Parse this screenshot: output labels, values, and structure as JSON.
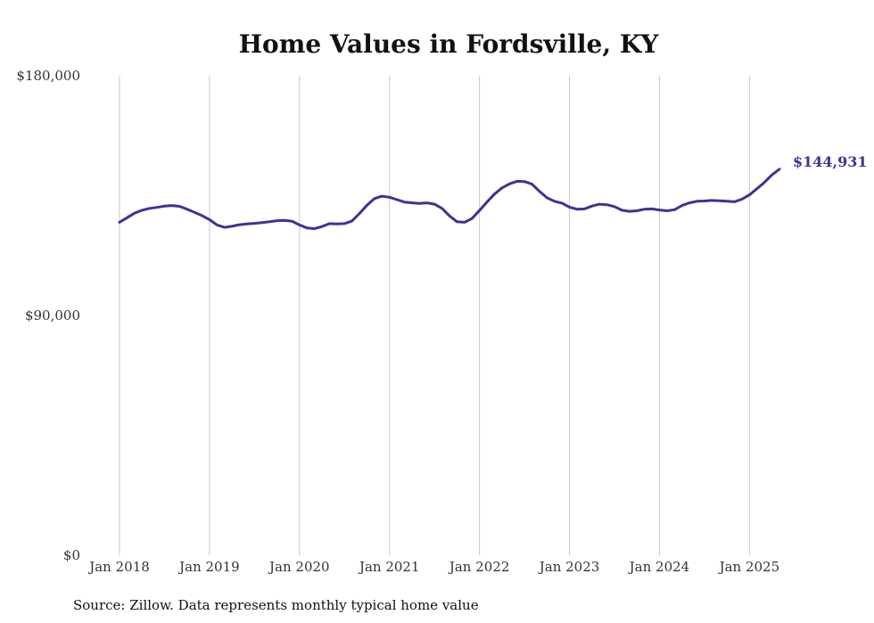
{
  "chart_data": {
    "type": "line",
    "title": "Home Values in Fordsville, KY",
    "xlabel": "",
    "ylabel": "",
    "ylim": [
      0,
      180000
    ],
    "y_ticks": [
      0,
      90000,
      180000
    ],
    "y_tick_labels": [
      "$0",
      "$90,000",
      "$180,000"
    ],
    "x_tick_labels": [
      "Jan 2018",
      "Jan 2019",
      "Jan 2020",
      "Jan 2021",
      "Jan 2022",
      "Jan 2023",
      "Jan 2024",
      "Jan 2025"
    ],
    "x_tick_dates": [
      "2018-01",
      "2019-01",
      "2020-01",
      "2021-01",
      "2022-01",
      "2023-01",
      "2024-01",
      "2025-01"
    ],
    "xlim": [
      "2018-01",
      "2025-05"
    ],
    "grid": "vertical",
    "end_label": "$144,931",
    "line_color": "#3b3496",
    "x": [
      "2018-01",
      "2018-02",
      "2018-03",
      "2018-04",
      "2018-05",
      "2018-06",
      "2018-07",
      "2018-08",
      "2018-09",
      "2018-10",
      "2018-11",
      "2018-12",
      "2019-01",
      "2019-02",
      "2019-03",
      "2019-04",
      "2019-05",
      "2019-06",
      "2019-07",
      "2019-08",
      "2019-09",
      "2019-10",
      "2019-11",
      "2019-12",
      "2020-01",
      "2020-02",
      "2020-03",
      "2020-04",
      "2020-05",
      "2020-06",
      "2020-07",
      "2020-08",
      "2020-09",
      "2020-10",
      "2020-11",
      "2020-12",
      "2021-01",
      "2021-02",
      "2021-03",
      "2021-04",
      "2021-05",
      "2021-06",
      "2021-07",
      "2021-08",
      "2021-09",
      "2021-10",
      "2021-11",
      "2021-12",
      "2022-01",
      "2022-02",
      "2022-03",
      "2022-04",
      "2022-05",
      "2022-06",
      "2022-07",
      "2022-08",
      "2022-09",
      "2022-10",
      "2022-11",
      "2022-12",
      "2023-01",
      "2023-02",
      "2023-03",
      "2023-04",
      "2023-05",
      "2023-06",
      "2023-07",
      "2023-08",
      "2023-09",
      "2023-10",
      "2023-11",
      "2023-12",
      "2024-01",
      "2024-02",
      "2024-03",
      "2024-04",
      "2024-05",
      "2024-06",
      "2024-07",
      "2024-08",
      "2024-09",
      "2024-10",
      "2024-11",
      "2024-12",
      "2025-01",
      "2025-02",
      "2025-03",
      "2025-04",
      "2025-05"
    ],
    "values": [
      125000,
      126700,
      128400,
      129500,
      130200,
      130600,
      131100,
      131300,
      131000,
      129900,
      128700,
      127500,
      126000,
      124000,
      123100,
      123500,
      124100,
      124400,
      124600,
      124900,
      125200,
      125600,
      125700,
      125400,
      124000,
      122900,
      122600,
      123400,
      124500,
      124400,
      124500,
      125500,
      128300,
      131400,
      133900,
      134800,
      134400,
      133500,
      132600,
      132300,
      132100,
      132300,
      131800,
      130200,
      127400,
      125200,
      125000,
      126400,
      129400,
      132600,
      135600,
      137900,
      139400,
      140400,
      140300,
      139300,
      136600,
      134200,
      132900,
      132200,
      130700,
      129900,
      130000,
      131100,
      131800,
      131600,
      130900,
      129500,
      129100,
      129300,
      129900,
      130000,
      129600,
      129300,
      129700,
      131300,
      132300,
      132900,
      133000,
      133200,
      133100,
      132900,
      132700,
      133700,
      135300,
      137600,
      140000,
      142800,
      144931
    ]
  },
  "source_note": "Source: Zillow. Data represents monthly typical home value"
}
